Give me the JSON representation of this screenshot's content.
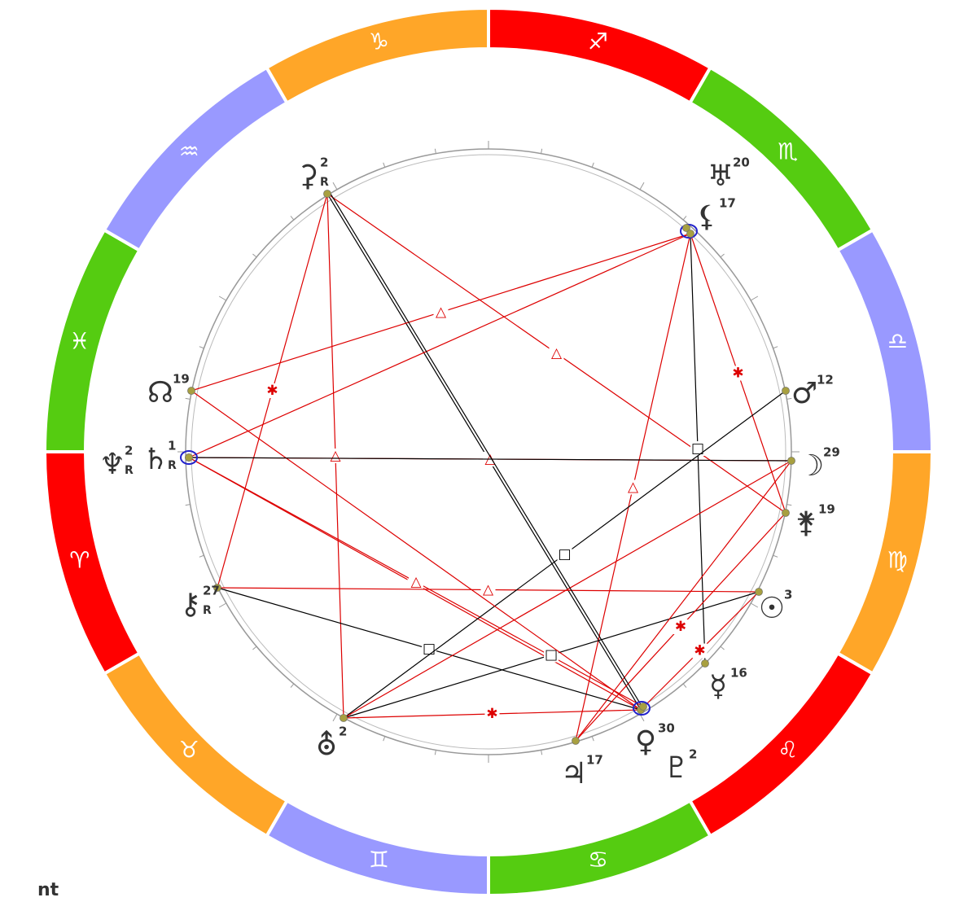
{
  "signs": [
    {
      "glyph": "♐",
      "color": "#ff0000"
    },
    {
      "glyph": "♏",
      "color": "#55cc11"
    },
    {
      "glyph": "♎",
      "color": "#9999ff"
    },
    {
      "glyph": "♍",
      "color": "#ffa628"
    },
    {
      "glyph": "♌",
      "color": "#ff0000"
    },
    {
      "glyph": "♋",
      "color": "#55cc11"
    },
    {
      "glyph": "♊",
      "color": "#9999ff"
    },
    {
      "glyph": "♉",
      "color": "#ffa628"
    },
    {
      "glyph": "♈",
      "color": "#ff0000"
    },
    {
      "glyph": "♓",
      "color": "#55cc11"
    },
    {
      "glyph": "♒",
      "color": "#9999ff"
    },
    {
      "glyph": "♑",
      "color": "#ffa628"
    }
  ],
  "planets": [
    {
      "glyph": "⚳",
      "degree": 2,
      "retro": "R"
    },
    {
      "glyph": "♅",
      "degree": 20
    },
    {
      "glyph": "⚸",
      "degree": 17
    },
    {
      "glyph": "☊",
      "degree": 19
    },
    {
      "glyph": "♆",
      "degree": 2,
      "retro": "R"
    },
    {
      "glyph": "♄",
      "degree": 1,
      "retro": "R"
    },
    {
      "glyph": "⚷",
      "degree": 27,
      "retro": "R"
    },
    {
      "glyph": "⛢",
      "degree": 2
    },
    {
      "glyph": "♃",
      "degree": 17
    },
    {
      "glyph": "♀",
      "degree": 30
    },
    {
      "glyph": "♇",
      "degree": 2
    },
    {
      "glyph": "☿",
      "degree": 16
    },
    {
      "glyph": "☉",
      "degree": 3
    },
    {
      "glyph": "⚵",
      "degree": 19
    },
    {
      "glyph": "☽",
      "degree": 29
    },
    {
      "glyph": "♂",
      "degree": 12
    }
  ],
  "aspects": [
    {
      "glyph": "✱"
    },
    {
      "glyph": "△"
    },
    {
      "glyph": "△"
    },
    {
      "glyph": "△"
    },
    {
      "glyph": "△"
    },
    {
      "glyph": "□"
    },
    {
      "glyph": "✱"
    },
    {
      "glyph": "△"
    },
    {
      "glyph": "△"
    },
    {
      "glyph": "△"
    },
    {
      "glyph": "△"
    },
    {
      "glyph": "□"
    },
    {
      "glyph": "□"
    },
    {
      "glyph": "□"
    },
    {
      "glyph": "✱"
    },
    {
      "glyph": "✱"
    },
    {
      "glyph": "✱"
    }
  ],
  "footer": {
    "label": "nt"
  }
}
